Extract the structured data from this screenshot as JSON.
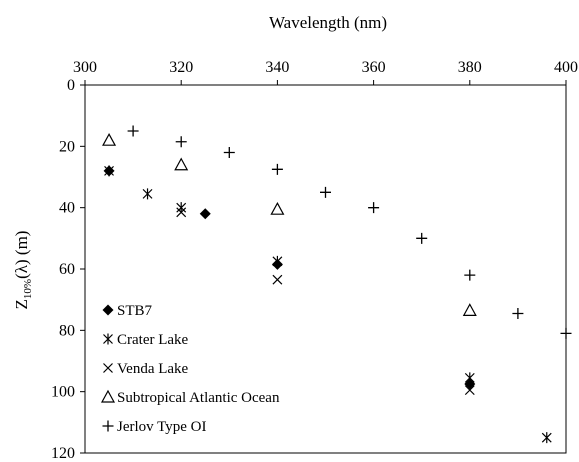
{
  "chart_data": {
    "type": "scatter",
    "xlabel": "Wavelength (nm)",
    "ylabel_main": "Z",
    "ylabel_sub": "10%",
    "ylabel_rest": "(λ) (m)",
    "xlim": [
      300,
      400
    ],
    "ylim": [
      0,
      120
    ],
    "x_axis_position": "top",
    "y_axis_inverted": true,
    "x_ticks": [
      "300",
      "320",
      "340",
      "360",
      "380",
      "400"
    ],
    "y_ticks": [
      "0",
      "20",
      "40",
      "60",
      "80",
      "100",
      "120"
    ],
    "legend_placement": "bottom-left",
    "grid": false,
    "series": [
      {
        "name": "STB7",
        "marker": "diamond",
        "points": [
          [
            305,
            28
          ],
          [
            325,
            42
          ],
          [
            340,
            58.5
          ],
          [
            380,
            97.5
          ]
        ]
      },
      {
        "name": "Crater Lake",
        "marker": "asterisk",
        "points": [
          [
            305,
            28
          ],
          [
            313,
            35.5
          ],
          [
            320,
            40
          ],
          [
            340,
            57.5
          ],
          [
            380,
            95.5
          ],
          [
            396,
            115
          ]
        ]
      },
      {
        "name": "Venda Lake",
        "marker": "x",
        "points": [
          [
            320,
            41.5
          ],
          [
            340,
            63.5
          ],
          [
            380,
            99.5
          ]
        ]
      },
      {
        "name": "Subtropical Atlantic Ocean",
        "marker": "triangle",
        "points": [
          [
            305,
            18
          ],
          [
            320,
            26
          ],
          [
            340,
            40.5
          ],
          [
            380,
            73.5
          ]
        ]
      },
      {
        "name": "Jerlov Type OI",
        "marker": "plus",
        "points": [
          [
            310,
            15
          ],
          [
            320,
            18.5
          ],
          [
            330,
            22
          ],
          [
            340,
            27.5
          ],
          [
            350,
            35
          ],
          [
            360,
            40
          ],
          [
            370,
            50
          ],
          [
            380,
            62
          ],
          [
            390,
            74.5
          ],
          [
            400,
            81
          ]
        ]
      }
    ]
  }
}
